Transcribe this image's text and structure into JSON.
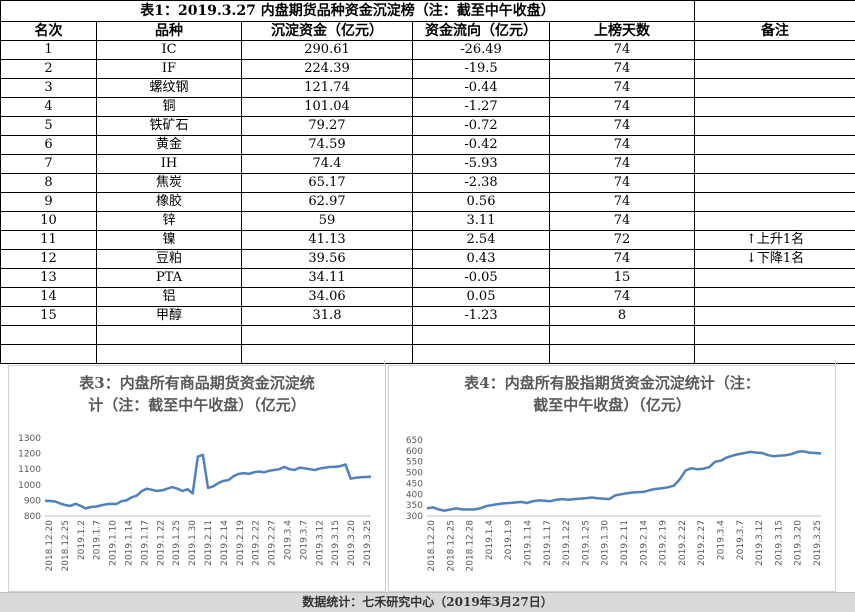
{
  "table": {
    "title": "表1：2019.3.27 内盘期货品种资金沉淀榜（注：截至中午收盘）",
    "headers": [
      "名次",
      "品种",
      "沉淀资金（亿元）",
      "资金流向（亿元）",
      "上榜天数",
      "备注"
    ],
    "rows": [
      {
        "rank": "1",
        "name": "IC",
        "amount": "290.61",
        "flow": "-26.49",
        "days": "74",
        "note": ""
      },
      {
        "rank": "2",
        "name": "IF",
        "amount": "224.39",
        "flow": "-19.5",
        "days": "74",
        "note": ""
      },
      {
        "rank": "3",
        "name": "螺纹钢",
        "amount": "121.74",
        "flow": "-0.44",
        "days": "74",
        "note": ""
      },
      {
        "rank": "4",
        "name": "铜",
        "amount": "101.04",
        "flow": "-1.27",
        "days": "74",
        "note": ""
      },
      {
        "rank": "5",
        "name": "铁矿石",
        "amount": "79.27",
        "flow": "-0.72",
        "days": "74",
        "note": ""
      },
      {
        "rank": "6",
        "name": "黄金",
        "amount": "74.59",
        "flow": "-0.42",
        "days": "74",
        "note": ""
      },
      {
        "rank": "7",
        "name": "IH",
        "amount": "74.4",
        "flow": "-5.93",
        "days": "74",
        "note": ""
      },
      {
        "rank": "8",
        "name": "焦炭",
        "amount": "65.17",
        "flow": "-2.38",
        "days": "74",
        "note": ""
      },
      {
        "rank": "9",
        "name": "橡胶",
        "amount": "62.97",
        "flow": "0.56",
        "days": "74",
        "note": ""
      },
      {
        "rank": "10",
        "name": "锌",
        "amount": "59",
        "flow": "3.11",
        "days": "74",
        "note": ""
      },
      {
        "rank": "11",
        "name": "镍",
        "amount": "41.13",
        "flow": "2.54",
        "days": "72",
        "note": "↑上升1名"
      },
      {
        "rank": "12",
        "name": "豆粕",
        "amount": "39.56",
        "flow": "0.43",
        "days": "74",
        "note": "↓下降1名"
      },
      {
        "rank": "13",
        "name": "PTA",
        "amount": "34.11",
        "flow": "-0.05",
        "days": "15",
        "note": ""
      },
      {
        "rank": "14",
        "name": "铝",
        "amount": "34.06",
        "flow": "0.05",
        "days": "74",
        "note": ""
      },
      {
        "rank": "15",
        "name": "甲醇",
        "amount": "31.8",
        "flow": "-1.23",
        "days": "8",
        "note": ""
      }
    ]
  },
  "chart_data": [
    {
      "type": "line",
      "title": "表3：内盘所有商品期货资金沉淀统计（注：截至中午收盘）（亿元）",
      "title_lines": [
        "表3：内盘所有商品期货资金沉淀统",
        "计（注：截至中午收盘）（亿元）"
      ],
      "color": "#4f81bd",
      "ylim": [
        800,
        1300
      ],
      "yticks": [
        800,
        900,
        1000,
        1100,
        1200,
        1300
      ],
      "xtick_labels": [
        "2018.12.20",
        "2018.12.25",
        "2019.1.2",
        "2019.1.7",
        "2019.1.10",
        "2019.1.14",
        "2019.1.17",
        "2019.1.22",
        "2019.1.25",
        "2019.1.30",
        "2019.2.11",
        "2019.2.14",
        "2019.2.19",
        "2019.2.22",
        "2019.2.27",
        "2019.3.4",
        "2019.3.7",
        "2019.3.12",
        "2019.3.15",
        "2019.3.20",
        "2019.3.25"
      ],
      "values": [
        898,
        896,
        893,
        880,
        870,
        865,
        878,
        865,
        848,
        858,
        860,
        868,
        875,
        878,
        876,
        895,
        900,
        920,
        930,
        960,
        975,
        968,
        960,
        965,
        975,
        985,
        975,
        960,
        972,
        945,
        1180,
        1192,
        980,
        990,
        1010,
        1025,
        1030,
        1055,
        1070,
        1075,
        1070,
        1080,
        1085,
        1080,
        1090,
        1095,
        1100,
        1115,
        1100,
        1095,
        1110,
        1105,
        1100,
        1095,
        1105,
        1110,
        1115,
        1115,
        1120,
        1130,
        1040,
        1045,
        1048,
        1050,
        1052
      ]
    },
    {
      "type": "line",
      "title": "表4：内盘所有股指期货资金沉淀统计（注：截至中午收盘）（亿元）",
      "title_lines": [
        "表4：内盘所有股指期货资金沉淀统计（注：",
        "截至中午收盘）（亿元）"
      ],
      "color": "#4f81bd",
      "ylim": [
        300,
        650
      ],
      "yticks": [
        300,
        350,
        400,
        450,
        500,
        550,
        600,
        650
      ],
      "xtick_labels": [
        "2018.12.20",
        "2018.12.25",
        "2018.12.28",
        "2019.1.4",
        "2019.1.9",
        "2019.1.14",
        "2019.1.17",
        "2019.1.22",
        "2019.1.25",
        "2019.1.30",
        "2019.2.11",
        "2019.2.14",
        "2019.2.19",
        "2019.2.22",
        "2019.2.27",
        "2019.3.4",
        "2019.3.7",
        "2019.3.12",
        "2019.3.15",
        "2019.3.20",
        "2019.3.25"
      ],
      "values": [
        335,
        340,
        330,
        325,
        330,
        335,
        330,
        330,
        330,
        335,
        345,
        350,
        355,
        358,
        360,
        362,
        365,
        360,
        368,
        372,
        370,
        368,
        375,
        378,
        375,
        378,
        380,
        382,
        385,
        382,
        380,
        378,
        395,
        400,
        405,
        408,
        410,
        412,
        420,
        425,
        428,
        432,
        440,
        470,
        510,
        520,
        515,
        518,
        525,
        550,
        555,
        570,
        578,
        585,
        590,
        595,
        592,
        590,
        580,
        575,
        578,
        580,
        585,
        595,
        598,
        592,
        590,
        588
      ]
    }
  ],
  "footer": "数据统计：七禾研究中心（2019年3月27日）"
}
